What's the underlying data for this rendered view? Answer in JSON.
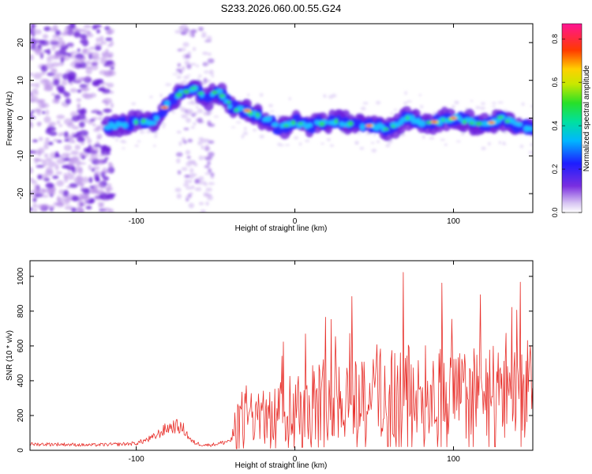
{
  "figure_title": "S233.2026.060.00.55.G24",
  "chart_data": [
    {
      "type": "heatmap",
      "title": "S233.2026.060.00.55.G24",
      "xlabel": "Height of straight line (km)",
      "ylabel": "Frequency (Hz)",
      "xlim": [
        -167,
        150
      ],
      "ylim": [
        -25,
        25
      ],
      "x_ticks": [
        -100,
        0,
        100
      ],
      "y_ticks": [
        -20,
        -10,
        0,
        10,
        20
      ],
      "colorbar": {
        "label": "Normalized spectral amplitude",
        "range": [
          0.0,
          0.87
        ],
        "ticks": [
          0.0,
          0.2,
          0.4,
          0.6,
          0.8
        ],
        "colormap": "rainbow (purple-blue-cyan-green-yellow-red-magenta)"
      },
      "ridge": {
        "x": [
          -115,
          -100,
          -90,
          -85,
          -80,
          -75,
          -70,
          -65,
          -60,
          -55,
          -50,
          -45,
          -40,
          -35,
          -30,
          -25,
          -20,
          -15,
          -10,
          -5,
          0,
          10,
          20,
          30,
          40,
          50,
          60,
          70,
          80,
          90,
          100,
          110,
          120,
          130,
          140,
          150
        ],
        "y": [
          -2,
          -1,
          -1,
          1,
          4,
          6,
          7,
          8,
          7,
          5,
          7,
          6,
          3,
          2,
          2,
          1,
          0,
          -1,
          -3,
          -2,
          -1,
          -2,
          -1,
          -1,
          -2,
          -2,
          -3,
          0,
          -1,
          -1,
          0,
          -1,
          -2,
          0,
          -2,
          -3
        ]
      },
      "grid": false
    },
    {
      "type": "line",
      "xlabel": "Height of straight line (km)",
      "ylabel": "SNR (10 * v/v)",
      "xlim": [
        -167,
        150
      ],
      "ylim": [
        0,
        1090
      ],
      "x_ticks": [
        -100,
        0,
        100
      ],
      "y_ticks": [
        0,
        200,
        400,
        600,
        800,
        1000
      ],
      "color": "#e8302b",
      "series": [
        {
          "x": [
            -167,
            -150,
            -130,
            -110,
            -100,
            -90,
            -85,
            -80,
            -75,
            -70,
            -65,
            -60,
            -55,
            -50,
            -45,
            -40,
            -38,
            -35,
            -30,
            -25,
            -20,
            -15,
            -10,
            -5,
            0,
            5,
            10,
            15,
            20,
            25,
            30,
            35,
            40,
            45,
            50,
            55,
            60,
            65,
            70,
            75,
            80,
            85,
            90,
            95,
            100,
            105,
            110,
            115,
            120,
            125,
            130,
            135,
            140,
            145,
            150
          ],
          "values": [
            35,
            35,
            30,
            35,
            40,
            70,
            100,
            130,
            140,
            120,
            50,
            35,
            30,
            35,
            45,
            60,
            150,
            220,
            260,
            230,
            200,
            230,
            280,
            300,
            330,
            340,
            360,
            350,
            380,
            360,
            370,
            380,
            390,
            400,
            420,
            410,
            420,
            400,
            420,
            390,
            410,
            400,
            410,
            400,
            390,
            380,
            400,
            410,
            420,
            400,
            390,
            420,
            400,
            430,
            420
          ]
        }
      ],
      "grid": false
    }
  ]
}
